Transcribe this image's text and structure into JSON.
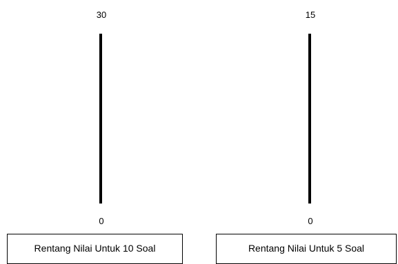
{
  "scales": [
    {
      "top_value": "30",
      "bottom_value": "0",
      "caption": "Rentang Nilai Untuk 10 Soal"
    },
    {
      "top_value": "15",
      "bottom_value": "0",
      "caption": "Rentang Nilai Untuk 5 Soal"
    }
  ],
  "colors": {
    "line": "#000000",
    "background": "#ffffff"
  }
}
